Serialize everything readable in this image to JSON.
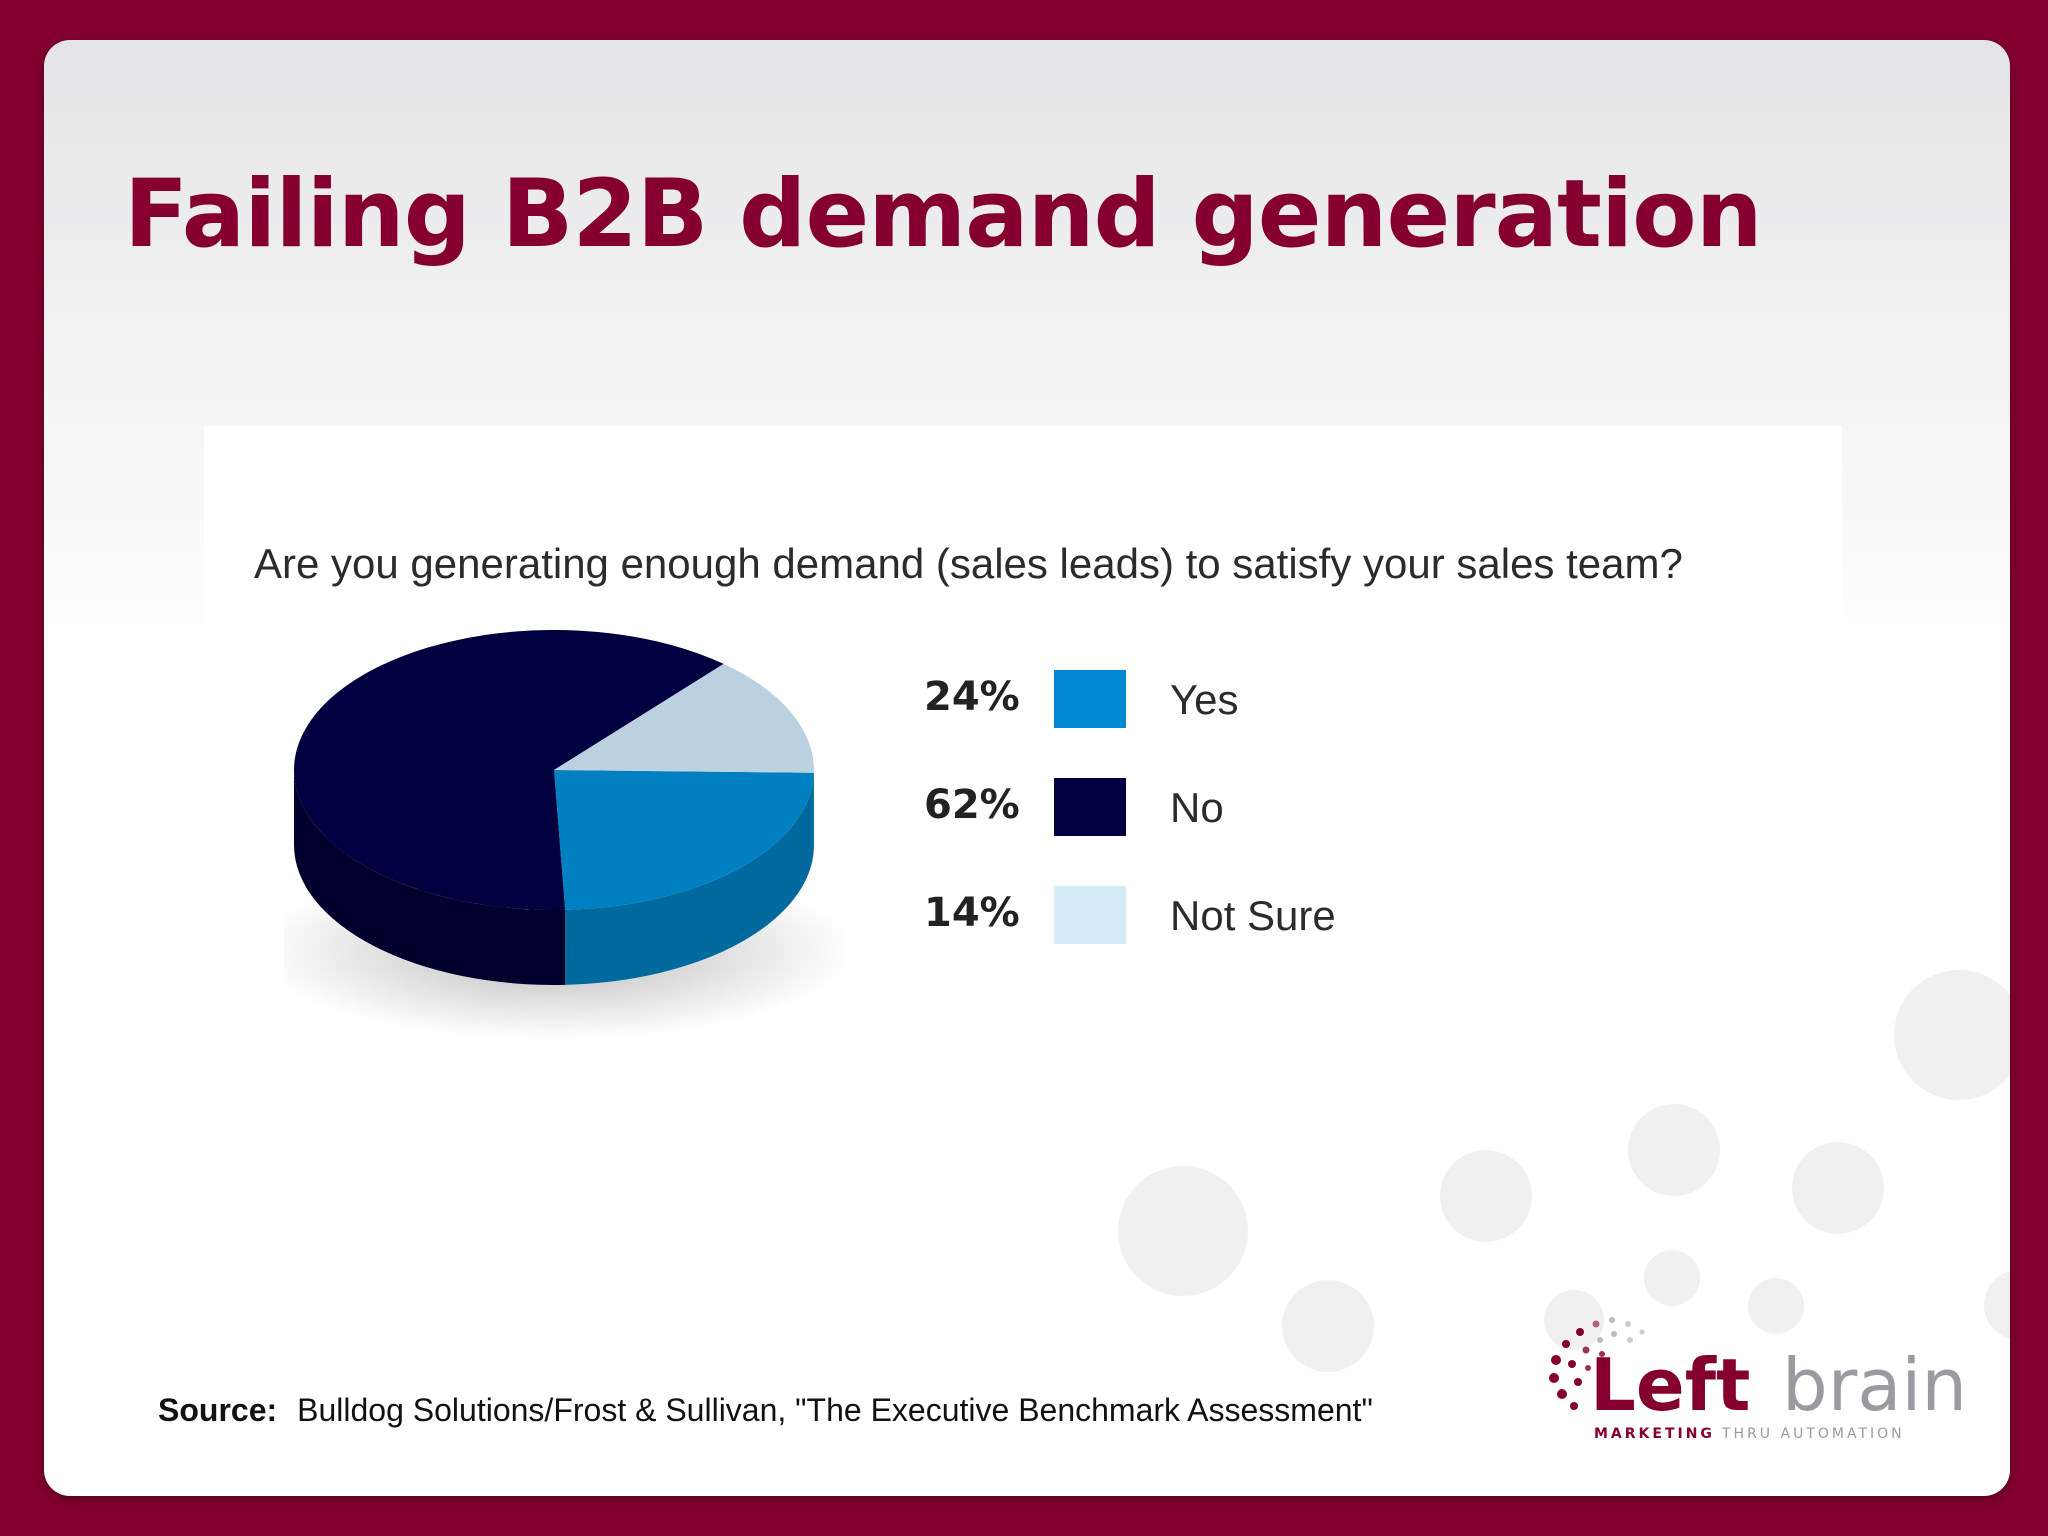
{
  "slide": {
    "title": "Failing B2B demand generation",
    "source_label": "Source:",
    "source_text": "Bulldog Solutions/Frost & Sullivan, \"The Executive Benchmark Assessment\""
  },
  "logo": {
    "name_bold": "Left",
    "name_light": "brain",
    "tagline_a": "MARKETING",
    "tagline_b": "THRU AUTOMATION"
  },
  "colors": {
    "brand": "#85002f",
    "yes": "#0089d0",
    "no": "#000040",
    "not_sure": "#d4ecf7"
  },
  "chart_data": {
    "type": "pie",
    "title": "Are you generating enough demand (sales leads) to satisfy your sales team?",
    "categories": [
      "Yes",
      "No",
      "Not Sure"
    ],
    "values": [
      24,
      62,
      14
    ],
    "value_labels": [
      "24%",
      "62%",
      "14%"
    ],
    "legend": "right",
    "style": "3d"
  }
}
